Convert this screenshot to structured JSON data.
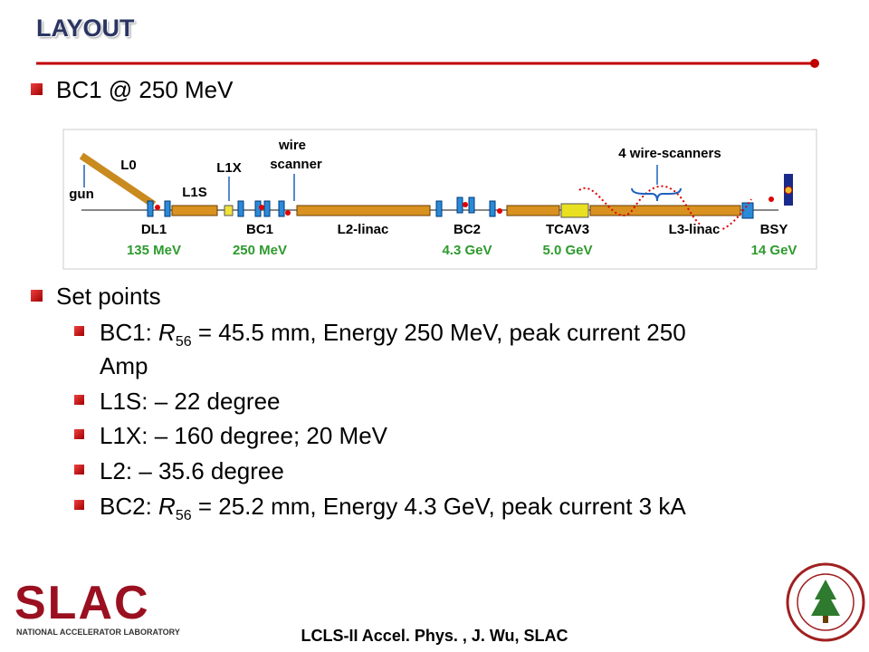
{
  "header": {
    "title": "LAYOUT"
  },
  "section1": {
    "bullet": "BC1 @ 250 MeV"
  },
  "diagram": {
    "labels": {
      "l0": "L0",
      "gun": "gun",
      "dl1": "DL1",
      "dl1_energy": "135 MeV",
      "l1s": "L1S",
      "l1x": "L1X",
      "bc1": "BC1",
      "bc1_energy": "250 MeV",
      "wire": "wire",
      "scanner": "scanner",
      "l2": "L2-linac",
      "bc2": "BC2",
      "bc2_energy": "4.3 GeV",
      "tcav3": "TCAV3",
      "tcav3_energy": "5.0 GeV",
      "wire_scanners": "4 wire-scanners",
      "l3": "L3-linac",
      "bsy": "BSY",
      "bsy_energy": "14 GeV"
    }
  },
  "section2": {
    "bullet": "Set points",
    "items": [
      [
        "BC1: ",
        "R",
        "56",
        " = 45.5 mm, Energy 250 MeV, peak current 250",
        "Amp"
      ],
      [
        "L1S: – 22 degree"
      ],
      [
        "L1X: – 160 degree; 20 MeV"
      ],
      [
        "L2: – 35.6 degree"
      ],
      [
        "BC2: ",
        "R",
        "56",
        " = 25.2 mm, Energy 4.3 GeV, peak current 3 kA"
      ]
    ]
  },
  "footer": {
    "text": "LCLS-II Accel. Phys. , J. Wu, SLAC",
    "logo": "SLAC",
    "logo_sub": "NATIONAL ACCELERATOR LABORATORY"
  }
}
